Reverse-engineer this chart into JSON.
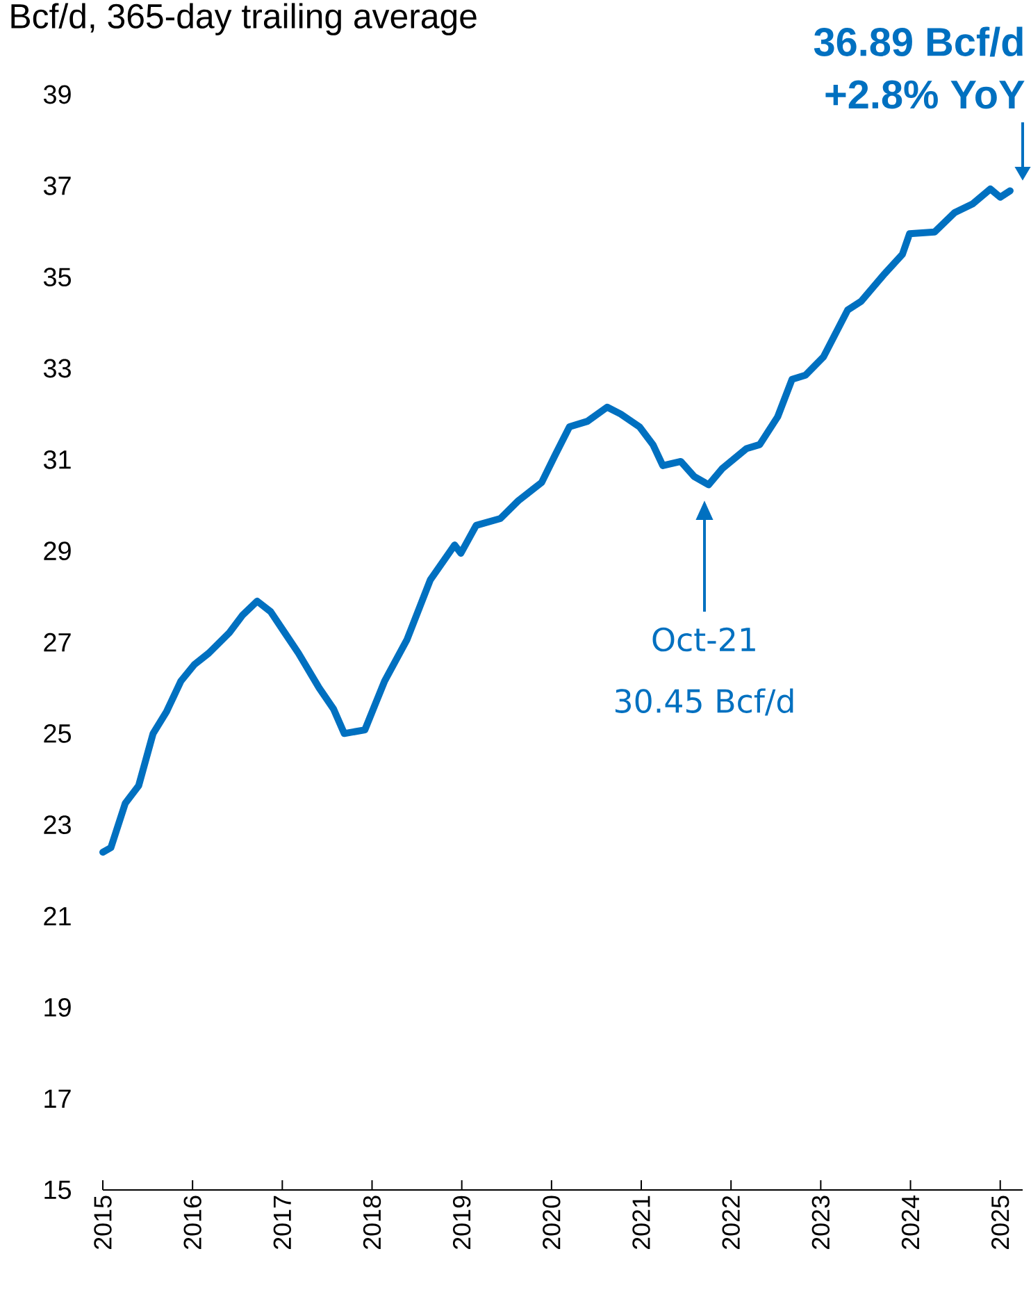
{
  "chart_data": {
    "type": "line",
    "subtitle": "Bcf/d, 365-day trailing average",
    "x": [
      2015.0,
      2015.09,
      2015.25,
      2015.4,
      2015.56,
      2015.71,
      2015.87,
      2016.02,
      2016.18,
      2016.41,
      2016.56,
      2016.72,
      2016.87,
      2017.03,
      2017.18,
      2017.41,
      2017.57,
      2017.69,
      2017.92,
      2018.14,
      2018.39,
      2018.65,
      2018.92,
      2018.99,
      2019.16,
      2019.43,
      2019.63,
      2019.89,
      2020.04,
      2020.2,
      2020.4,
      2020.62,
      2020.77,
      2020.98,
      2021.13,
      2021.24,
      2021.44,
      2021.59,
      2021.75,
      2021.9,
      2022.17,
      2022.32,
      2022.52,
      2022.68,
      2022.83,
      2023.03,
      2023.3,
      2023.45,
      2023.71,
      2023.91,
      2023.99,
      2024.27,
      2024.49,
      2024.69,
      2024.89,
      2025.0,
      2025.11
    ],
    "series": [
      {
        "color": "#0070c0",
        "values": [
          22.4,
          22.5,
          23.47,
          23.86,
          25.0,
          25.48,
          26.15,
          26.51,
          26.76,
          27.21,
          27.6,
          27.9,
          27.67,
          27.2,
          26.76,
          26.0,
          25.54,
          25.0,
          25.08,
          26.15,
          27.06,
          28.37,
          29.13,
          28.95,
          29.56,
          29.71,
          30.1,
          30.5,
          31.1,
          31.72,
          31.84,
          32.15,
          32.0,
          31.72,
          31.33,
          30.87,
          30.96,
          30.63,
          30.45,
          30.8,
          31.24,
          31.33,
          31.94,
          32.76,
          32.85,
          33.25,
          34.28,
          34.47,
          35.07,
          35.5,
          35.95,
          35.99,
          36.41,
          36.6,
          36.93,
          36.75,
          36.89
        ]
      }
    ],
    "xlim": [
      2015,
      2025.25
    ],
    "ylim": [
      15,
      39
    ],
    "xticks": [
      2015,
      2016,
      2017,
      2018,
      2019,
      2020,
      2021,
      2022,
      2023,
      2024,
      2025
    ],
    "yticks": [
      15,
      17,
      19,
      21,
      23,
      25,
      27,
      29,
      31,
      33,
      35,
      37,
      39
    ],
    "grid": false,
    "marker": "none",
    "line_style": "solid",
    "annotations": [
      "36.89 Bcf/d",
      "+2.8% YoY",
      "Oct-21",
      "30.45 Bcf/d"
    ]
  }
}
